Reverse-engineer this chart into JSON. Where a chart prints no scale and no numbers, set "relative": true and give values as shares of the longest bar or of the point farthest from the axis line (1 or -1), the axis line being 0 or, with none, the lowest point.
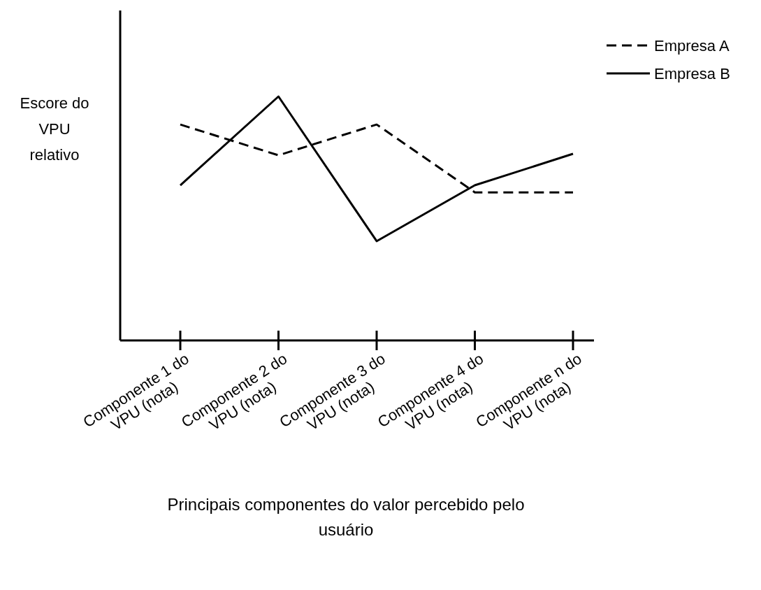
{
  "chart_data": {
    "type": "line",
    "relative": true,
    "xlabel": "Principais componentes do valor percebido pelo usuário",
    "ylabel": "Escore do VPU relativo",
    "categories": [
      "Componente 1 do VPU (nota)",
      "Componente 2 do VPU (nota)",
      "Componente 3 do VPU (nota)",
      "Componente 4 do VPU (nota)",
      "Componente n do VPU (nota)"
    ],
    "series": [
      {
        "name": "Empresa A",
        "color": "#000000",
        "line_style": "dashed",
        "values": [
          0.885,
          0.759,
          0.885,
          0.607,
          0.607
        ]
      },
      {
        "name": "Empresa B",
        "color": "#000000",
        "line_style": "solid",
        "values": [
          0.636,
          1,
          0.407,
          0.636,
          0.765
        ]
      }
    ],
    "legend": "top right",
    "marker": "none"
  }
}
